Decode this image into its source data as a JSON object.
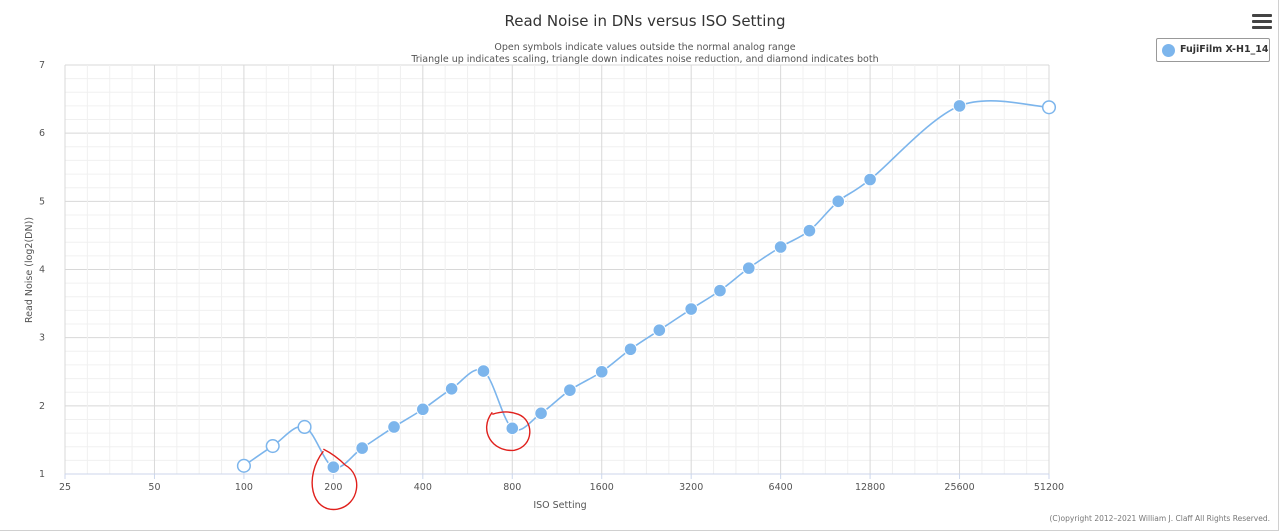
{
  "chart_data": {
    "type": "line",
    "title": "Read Noise in DNs versus ISO Setting",
    "subtitle": [
      "Open symbols indicate values outside the normal analog range",
      "Triangle up indicates scaling, triangle down indicates noise reduction, and diamond indicates both"
    ],
    "xlabel": "ISO Setting",
    "ylabel": "Read Noise (log2(DN))",
    "x_scale": "log2",
    "xlim": [
      25,
      51200
    ],
    "ylim": [
      1,
      7
    ],
    "x_ticks": [
      "25",
      "50",
      "100",
      "200",
      "400",
      "800",
      "1600",
      "3200",
      "6400",
      "12800",
      "25600",
      "51200"
    ],
    "y_ticks": [
      "1",
      "2",
      "3",
      "4",
      "5",
      "6",
      "7"
    ],
    "grid": true,
    "legend_position": "top-right",
    "series": [
      {
        "name": "FujiFilm X-H1_14",
        "color": "#7cb5ec",
        "points": [
          {
            "iso": 100,
            "y": 1.12,
            "open": true
          },
          {
            "iso": 125,
            "y": 1.41,
            "open": true
          },
          {
            "iso": 160,
            "y": 1.69,
            "open": true
          },
          {
            "iso": 200,
            "y": 1.1,
            "open": false
          },
          {
            "iso": 250,
            "y": 1.38,
            "open": false
          },
          {
            "iso": 320,
            "y": 1.69,
            "open": false
          },
          {
            "iso": 400,
            "y": 1.95,
            "open": false
          },
          {
            "iso": 500,
            "y": 2.25,
            "open": false
          },
          {
            "iso": 640,
            "y": 2.51,
            "open": false
          },
          {
            "iso": 800,
            "y": 1.67,
            "open": false
          },
          {
            "iso": 1000,
            "y": 1.89,
            "open": false
          },
          {
            "iso": 1250,
            "y": 2.23,
            "open": false
          },
          {
            "iso": 1600,
            "y": 2.5,
            "open": false
          },
          {
            "iso": 2000,
            "y": 2.83,
            "open": false
          },
          {
            "iso": 2500,
            "y": 3.11,
            "open": false
          },
          {
            "iso": 3200,
            "y": 3.42,
            "open": false
          },
          {
            "iso": 4000,
            "y": 3.69,
            "open": false
          },
          {
            "iso": 5000,
            "y": 4.02,
            "open": false
          },
          {
            "iso": 6400,
            "y": 4.33,
            "open": false
          },
          {
            "iso": 8000,
            "y": 4.57,
            "open": false
          },
          {
            "iso": 10000,
            "y": 5.0,
            "open": false
          },
          {
            "iso": 12800,
            "y": 5.32,
            "open": false
          },
          {
            "iso": 25600,
            "y": 6.4,
            "open": false
          },
          {
            "iso": 51200,
            "y": 6.38,
            "open": true
          }
        ]
      }
    ]
  },
  "legend": {
    "label": "FujiFilm X-H1_14",
    "color": "#7cb5ec"
  },
  "credits": "(C)opyright 2012–2021 William J. Claff All Rights Reserved.",
  "menu": {
    "icon": "hamburger-menu-icon"
  }
}
